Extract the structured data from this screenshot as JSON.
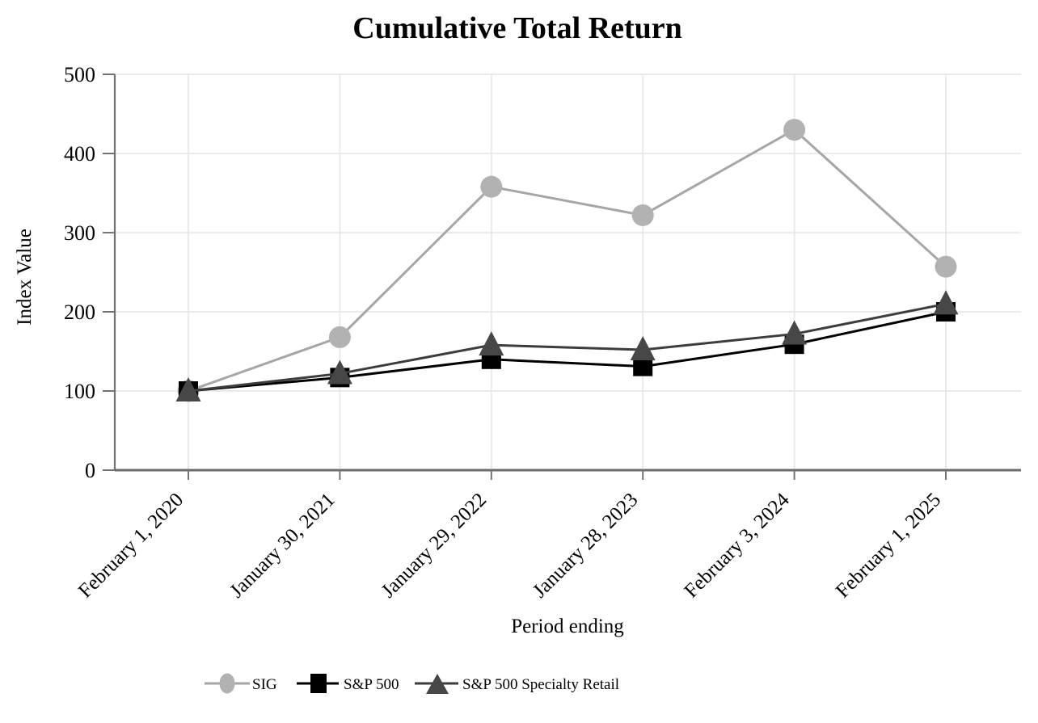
{
  "chart_data": {
    "type": "line",
    "title": "Cumulative Total Return",
    "xlabel": "Period ending",
    "ylabel": "Index Value",
    "categories": [
      "February 1, 2020",
      "January 30, 2021",
      "January 29, 2022",
      "January 28, 2023",
      "February 3, 2024",
      "February 1, 2025"
    ],
    "ylim": [
      0,
      500
    ],
    "y_ticks": [
      0,
      100,
      200,
      300,
      400,
      500
    ],
    "grid": true,
    "legend_position": "bottom",
    "series": [
      {
        "name": "SIG",
        "marker": "circle",
        "marker_color": "#b2b2b2",
        "line_color": "#a6a6a6",
        "values": [
          100,
          168,
          358,
          322,
          430,
          257
        ]
      },
      {
        "name": "S&P 500",
        "marker": "square",
        "marker_color": "#000000",
        "line_color": "#000000",
        "values": [
          100,
          117,
          140,
          131,
          159,
          200
        ]
      },
      {
        "name": "S&P 500 Specialty Retail",
        "marker": "triangle",
        "marker_color": "#474747",
        "line_color": "#3d3d3d",
        "values": [
          100,
          122,
          158,
          152,
          172,
          210
        ]
      }
    ]
  },
  "colors": {
    "background": "#ffffff",
    "gridline": "#e8e8e8",
    "axis": "#737373",
    "x_axis_line": "#6b6b6b",
    "text": "#000000"
  }
}
